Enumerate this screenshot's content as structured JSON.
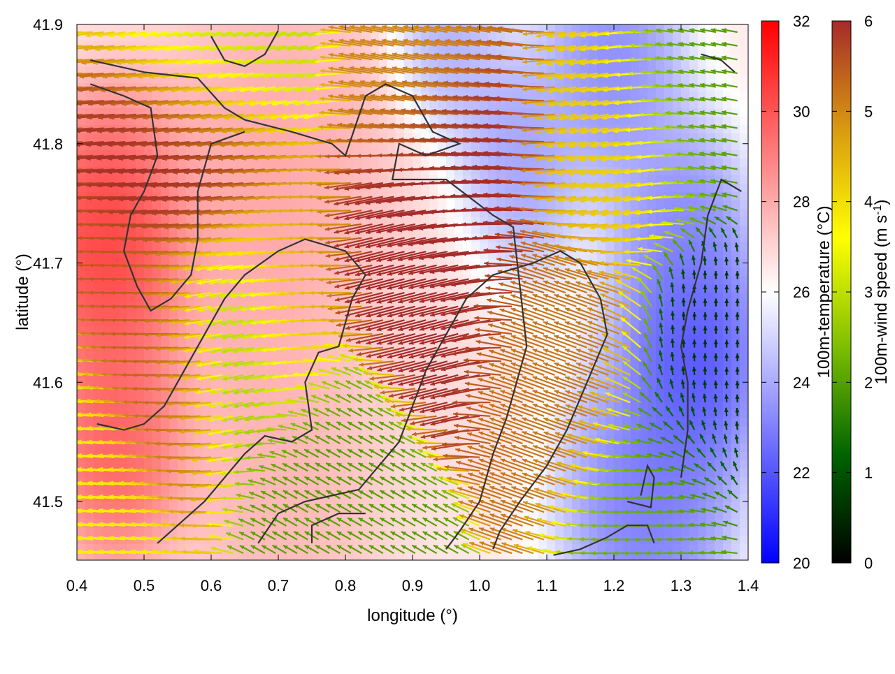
{
  "chart_data": {
    "type": "heatmap",
    "title": "",
    "xlabel": "longitude (°)",
    "ylabel": "latitude (°)",
    "xlim": [
      0.4,
      1.4
    ],
    "ylim": [
      1.45,
      41.9
    ],
    "x_ticks": [
      {
        "value": 0.4,
        "label": "0.4"
      },
      {
        "value": 0.5,
        "label": "0.5"
      },
      {
        "value": 0.6,
        "label": "0.6"
      },
      {
        "value": 0.7,
        "label": "0.7"
      },
      {
        "value": 0.8,
        "label": "0.8"
      },
      {
        "value": 0.9,
        "label": "0.9"
      },
      {
        "value": 1.0,
        "label": "1.0"
      },
      {
        "value": 1.1,
        "label": "1.1"
      },
      {
        "value": 1.2,
        "label": "1.2"
      },
      {
        "value": 1.3,
        "label": "1.3"
      },
      {
        "value": 1.4,
        "label": "1.4"
      }
    ],
    "y_ticks": [
      {
        "value": 41.5,
        "label": "41.5"
      },
      {
        "value": 41.6,
        "label": "41.6"
      },
      {
        "value": 41.7,
        "label": "41.7"
      },
      {
        "value": 41.8,
        "label": "41.8"
      },
      {
        "value": 41.9,
        "label": "41.9"
      }
    ],
    "grid": false,
    "temperature_colorbar": {
      "label": "100m-temperature (°C)",
      "range": [
        20,
        32
      ],
      "ticks": [
        {
          "value": 20,
          "label": "20"
        },
        {
          "value": 22,
          "label": "22"
        },
        {
          "value": 24,
          "label": "24"
        },
        {
          "value": 26,
          "label": "26"
        },
        {
          "value": 28,
          "label": "28"
        },
        {
          "value": 30,
          "label": "30"
        },
        {
          "value": 32,
          "label": "32"
        }
      ],
      "colors": [
        "#0000ff",
        "#ffffff",
        "#ff0000"
      ]
    },
    "wind_colorbar": {
      "label": "100m-wind speed (m s-1)",
      "range": [
        0,
        6
      ],
      "ticks": [
        {
          "value": 0,
          "label": "0"
        },
        {
          "value": 1,
          "label": "1"
        },
        {
          "value": 2,
          "label": "2"
        },
        {
          "value": 3,
          "label": "3"
        },
        {
          "value": 4,
          "label": "4"
        },
        {
          "value": 5,
          "label": "5"
        },
        {
          "value": 6,
          "label": "6"
        }
      ],
      "colors": [
        "#000000",
        "#006400",
        "#7fbf00",
        "#ffff00",
        "#d99a10",
        "#a52a2a"
      ]
    },
    "temperature_field": {
      "blobs": [
        {
          "lon": 0.45,
          "lat": 41.72,
          "temp": 31.5,
          "radius": 0.09
        },
        {
          "lon": 0.46,
          "lat": 41.55,
          "temp": 30.5,
          "radius": 0.08
        },
        {
          "lon": 0.7,
          "lat": 41.52,
          "temp": 28.0,
          "radius": 0.12
        },
        {
          "lon": 0.7,
          "lat": 41.75,
          "temp": 28.5,
          "radius": 0.15
        },
        {
          "lon": 0.9,
          "lat": 41.65,
          "temp": 27.0,
          "radius": 0.12
        },
        {
          "lon": 1.05,
          "lat": 41.78,
          "temp": 23.0,
          "radius": 0.08
        },
        {
          "lon": 1.32,
          "lat": 41.62,
          "temp": 20.8,
          "radius": 0.08
        },
        {
          "lon": 1.25,
          "lat": 41.5,
          "temp": 22.0,
          "radius": 0.1
        },
        {
          "lon": 1.3,
          "lat": 41.72,
          "temp": 22.5,
          "radius": 0.08
        },
        {
          "lon": 1.2,
          "lat": 41.87,
          "temp": 22.5,
          "radius": 0.08
        },
        {
          "lon": 0.95,
          "lat": 41.88,
          "temp": 23.5,
          "radius": 0.06
        }
      ],
      "background_temp": 26.5
    },
    "wind_field": {
      "spacing_deg": {
        "lon": 0.016,
        "lat": 0.0115
      },
      "regimes": [
        {
          "lon": 0.62,
          "lat": 41.78,
          "speed": 6.0,
          "dir_deg": 185
        },
        {
          "lon": 0.55,
          "lat": 41.62,
          "speed": 5.5,
          "dir_deg": 180
        },
        {
          "lon": 0.45,
          "lat": 41.52,
          "speed": 3.8,
          "dir_deg": 175
        },
        {
          "lon": 0.7,
          "lat": 41.67,
          "speed": 4.8,
          "dir_deg": 178
        },
        {
          "lon": 0.66,
          "lat": 41.65,
          "speed": 1.8,
          "dir_deg": 200
        },
        {
          "lon": 0.8,
          "lat": 41.5,
          "speed": 2.0,
          "dir_deg": 150
        },
        {
          "lon": 0.95,
          "lat": 41.7,
          "speed": 6.0,
          "dir_deg": 195
        },
        {
          "lon": 1.0,
          "lat": 41.78,
          "speed": 6.0,
          "dir_deg": 175
        },
        {
          "lon": 1.15,
          "lat": 41.62,
          "speed": 5.2,
          "dir_deg": 160
        },
        {
          "lon": 1.22,
          "lat": 41.8,
          "speed": 4.2,
          "dir_deg": 190
        },
        {
          "lon": 1.33,
          "lat": 41.85,
          "speed": 2.0,
          "dir_deg": 170
        },
        {
          "lon": 1.34,
          "lat": 41.6,
          "speed": 0.6,
          "dir_deg": 90
        },
        {
          "lon": 1.28,
          "lat": 41.5,
          "speed": 2.2,
          "dir_deg": 180
        },
        {
          "lon": 0.65,
          "lat": 41.88,
          "speed": 3.0,
          "dir_deg": 190
        },
        {
          "lon": 0.95,
          "lat": 41.88,
          "speed": 5.0,
          "dir_deg": 170
        }
      ]
    },
    "contours": [
      [
        [
          0.42,
          41.87
        ],
        [
          0.5,
          41.86
        ],
        [
          0.58,
          41.855
        ],
        [
          0.62,
          41.83
        ],
        [
          0.65,
          41.82
        ],
        [
          0.72,
          41.81
        ],
        [
          0.78,
          41.8
        ],
        [
          0.8,
          41.79
        ],
        [
          0.83,
          41.84
        ],
        [
          0.86,
          41.85
        ],
        [
          0.9,
          41.84
        ],
        [
          0.93,
          41.81
        ],
        [
          0.97,
          41.8
        ],
        [
          0.92,
          41.79
        ],
        [
          0.88,
          41.8
        ],
        [
          0.87,
          41.77
        ],
        [
          0.95,
          41.77
        ],
        [
          1.02,
          41.74
        ],
        [
          1.05,
          41.73
        ],
        [
          1.06,
          41.68
        ],
        [
          1.07,
          41.63
        ],
        [
          1.04,
          41.57
        ],
        [
          1.02,
          41.54
        ],
        [
          1.0,
          41.5
        ],
        [
          0.97,
          41.475
        ],
        [
          0.95,
          41.46
        ]
      ],
      [
        [
          0.42,
          41.85
        ],
        [
          0.47,
          41.84
        ],
        [
          0.51,
          41.83
        ],
        [
          0.52,
          41.79
        ],
        [
          0.5,
          41.76
        ],
        [
          0.48,
          41.74
        ],
        [
          0.47,
          41.71
        ],
        [
          0.49,
          41.68
        ],
        [
          0.51,
          41.66
        ],
        [
          0.54,
          41.67
        ],
        [
          0.57,
          41.69
        ],
        [
          0.58,
          41.72
        ],
        [
          0.58,
          41.76
        ],
        [
          0.6,
          41.8
        ],
        [
          0.65,
          41.81
        ]
      ],
      [
        [
          0.52,
          41.465
        ],
        [
          0.55,
          41.48
        ],
        [
          0.59,
          41.5
        ],
        [
          0.62,
          41.52
        ],
        [
          0.65,
          41.54
        ],
        [
          0.68,
          41.555
        ],
        [
          0.72,
          41.55
        ],
        [
          0.75,
          41.56
        ],
        [
          0.74,
          41.6
        ],
        [
          0.76,
          41.625
        ],
        [
          0.79,
          41.63
        ],
        [
          0.81,
          41.67
        ],
        [
          0.83,
          41.69
        ],
        [
          0.8,
          41.71
        ],
        [
          0.74,
          41.72
        ],
        [
          0.7,
          41.71
        ],
        [
          0.65,
          41.69
        ],
        [
          0.62,
          41.67
        ],
        [
          0.59,
          41.64
        ],
        [
          0.56,
          41.61
        ],
        [
          0.53,
          41.58
        ],
        [
          0.5,
          41.565
        ],
        [
          0.47,
          41.56
        ],
        [
          0.43,
          41.565
        ]
      ],
      [
        [
          0.67,
          41.465
        ],
        [
          0.7,
          41.49
        ],
        [
          0.74,
          41.5
        ],
        [
          0.78,
          41.505
        ],
        [
          0.82,
          41.51
        ],
        [
          0.85,
          41.53
        ],
        [
          0.88,
          41.55
        ],
        [
          0.9,
          41.58
        ],
        [
          0.92,
          41.61
        ],
        [
          0.95,
          41.64
        ],
        [
          0.98,
          41.67
        ],
        [
          1.02,
          41.69
        ],
        [
          1.08,
          41.7
        ],
        [
          1.12,
          41.71
        ],
        [
          1.15,
          41.7
        ],
        [
          1.18,
          41.67
        ],
        [
          1.19,
          41.64
        ],
        [
          1.16,
          41.6
        ],
        [
          1.13,
          41.56
        ],
        [
          1.1,
          41.53
        ],
        [
          1.06,
          41.5
        ],
        [
          1.03,
          41.475
        ],
        [
          1.02,
          41.46
        ]
      ],
      [
        [
          1.11,
          41.455
        ],
        [
          1.15,
          41.46
        ],
        [
          1.19,
          41.47
        ],
        [
          1.22,
          41.48
        ],
        [
          1.25,
          41.48
        ],
        [
          1.26,
          41.465
        ]
      ],
      [
        [
          1.24,
          41.505
        ],
        [
          1.25,
          41.53
        ],
        [
          1.26,
          41.52
        ],
        [
          1.255,
          41.495
        ],
        [
          1.22,
          41.5
        ]
      ],
      [
        [
          1.3,
          41.52
        ],
        [
          1.31,
          41.56
        ],
        [
          1.31,
          41.6
        ],
        [
          1.3,
          41.63
        ],
        [
          1.31,
          41.66
        ],
        [
          1.33,
          41.7
        ],
        [
          1.34,
          41.74
        ],
        [
          1.36,
          41.77
        ],
        [
          1.39,
          41.76
        ]
      ],
      [
        [
          0.75,
          41.465
        ],
        [
          0.75,
          41.48
        ],
        [
          0.79,
          41.49
        ],
        [
          0.83,
          41.49
        ]
      ],
      [
        [
          0.6,
          41.89
        ],
        [
          0.62,
          41.87
        ],
        [
          0.65,
          41.865
        ],
        [
          0.68,
          41.875
        ],
        [
          0.7,
          41.895
        ]
      ],
      [
        [
          1.33,
          41.875
        ],
        [
          1.36,
          41.87
        ],
        [
          1.38,
          41.86
        ]
      ]
    ]
  }
}
